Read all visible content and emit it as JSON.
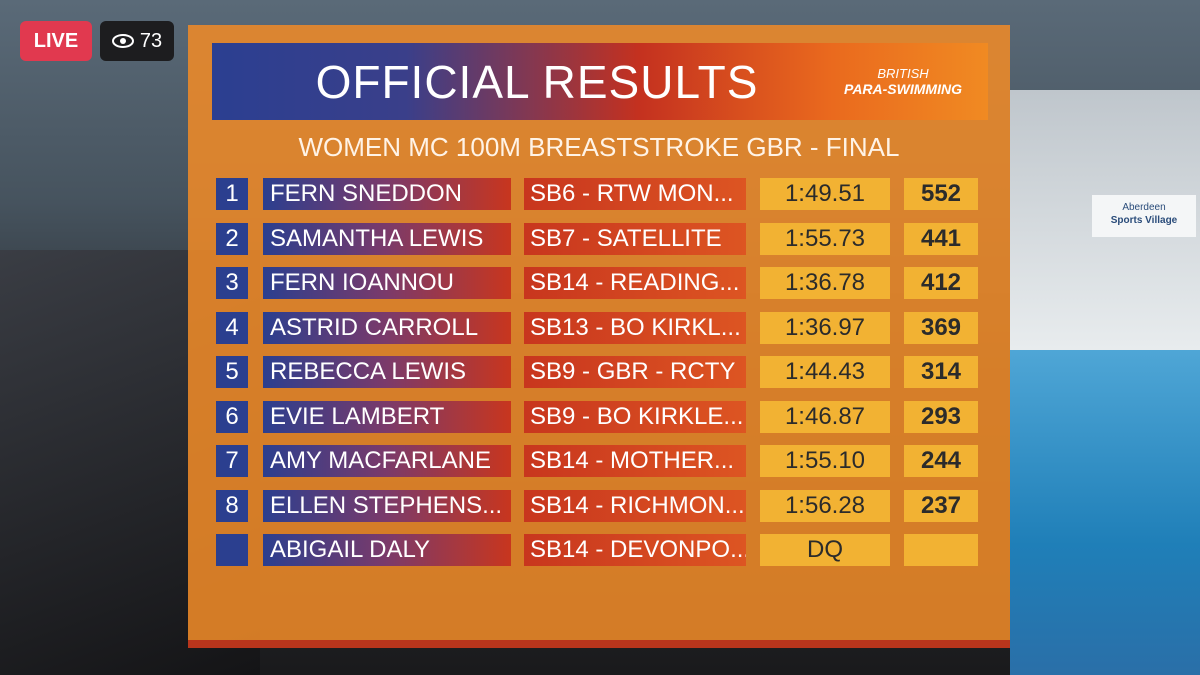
{
  "live_badge": "LIVE",
  "viewers": "73",
  "venue_sign": [
    "Aberdeen",
    "Sports Village"
  ],
  "results": {
    "title": "OFFICIAL RESULTS",
    "logo": [
      "BRITISH",
      "PARA-SWIMMING"
    ],
    "event": "WOMEN MC 100M BREASTSTROKE GBR - FINAL",
    "rows": [
      {
        "place": "1",
        "name": "FERN SNEDDON",
        "club": "SB6 - RTW MON...",
        "time": "1:49.51",
        "points": "552"
      },
      {
        "place": "2",
        "name": "SAMANTHA LEWIS",
        "club": "SB7 - SATELLITE",
        "time": "1:55.73",
        "points": "441"
      },
      {
        "place": "3",
        "name": "FERN IOANNOU",
        "club": "SB14 - READING...",
        "time": "1:36.78",
        "points": "412"
      },
      {
        "place": "4",
        "name": "ASTRID CARROLL",
        "club": "SB13 - BO KIRKL...",
        "time": "1:36.97",
        "points": "369"
      },
      {
        "place": "5",
        "name": "REBECCA LEWIS",
        "club": "SB9 - GBR - RCTY",
        "time": "1:44.43",
        "points": "314"
      },
      {
        "place": "6",
        "name": "EVIE LAMBERT",
        "club": "SB9 - BO KIRKLE...",
        "time": "1:46.87",
        "points": "293"
      },
      {
        "place": "7",
        "name": "AMY MACFARLANE",
        "club": "SB14 - MOTHER...",
        "time": "1:55.10",
        "points": "244"
      },
      {
        "place": "8",
        "name": "ELLEN STEPHENS...",
        "club": "SB14 - RICHMON...",
        "time": "1:56.28",
        "points": "237"
      },
      {
        "name": "ABIGAIL DALY",
        "club": "SB14 - DEVONPO...",
        "time": "DQ"
      }
    ]
  }
}
